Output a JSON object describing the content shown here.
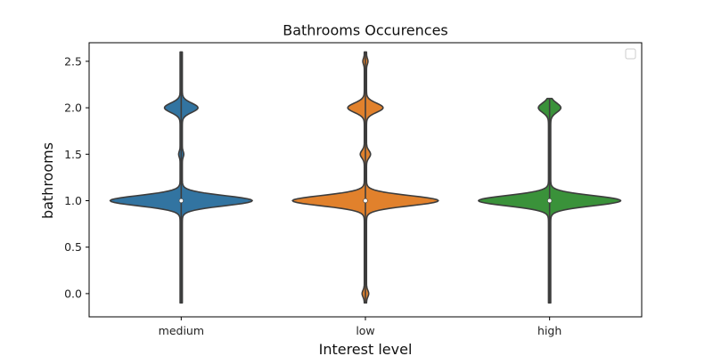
{
  "chart_data": {
    "type": "violin",
    "title": "Bathrooms Occurences",
    "xlabel": "Interest level",
    "ylabel": "bathrooms",
    "categories": [
      "medium",
      "low",
      "high"
    ],
    "colors": [
      "#3274a1",
      "#e1812c",
      "#3a923a"
    ],
    "ylim": [
      -0.25,
      2.7
    ],
    "yticks": [
      0.0,
      0.5,
      1.0,
      1.5,
      2.0,
      2.5
    ],
    "ytick_labels": [
      "0.0",
      "0.5",
      "1.0",
      "1.5",
      "2.0",
      "2.5"
    ],
    "series": [
      {
        "category": "medium",
        "range": [
          -0.1,
          2.6
        ],
        "median": 1.0,
        "modes": [
          {
            "at": 1.0,
            "halfwidth": 0.38,
            "sigma": 0.055
          },
          {
            "at": 2.0,
            "halfwidth": 0.085,
            "sigma": 0.05
          },
          {
            "at": 1.5,
            "halfwidth": 0.008,
            "sigma": 0.03
          }
        ]
      },
      {
        "category": "low",
        "range": [
          -0.1,
          2.6
        ],
        "median": 1.0,
        "modes": [
          {
            "at": 1.0,
            "halfwidth": 0.39,
            "sigma": 0.055
          },
          {
            "at": 2.0,
            "halfwidth": 0.09,
            "sigma": 0.05
          },
          {
            "at": 1.5,
            "halfwidth": 0.022,
            "sigma": 0.04
          },
          {
            "at": 0.0,
            "halfwidth": 0.012,
            "sigma": 0.035
          },
          {
            "at": 2.5,
            "halfwidth": 0.008,
            "sigma": 0.03
          }
        ]
      },
      {
        "category": "high",
        "range": [
          -0.1,
          2.1
        ],
        "median": 1.0,
        "modes": [
          {
            "at": 1.0,
            "halfwidth": 0.38,
            "sigma": 0.055
          },
          {
            "at": 2.0,
            "halfwidth": 0.055,
            "sigma": 0.05
          }
        ]
      }
    ],
    "legend": {
      "position": "top-right",
      "entries": []
    },
    "grid": false
  }
}
